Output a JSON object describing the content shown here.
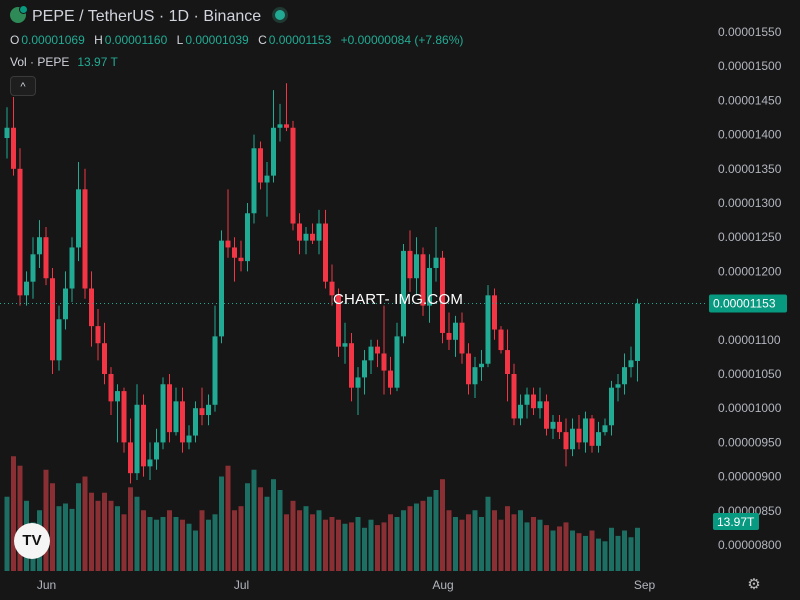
{
  "header": {
    "title": "PEPE / TetherUS · 1D · Binance",
    "ohlc": {
      "o_label": "O",
      "o": "0.00001069",
      "h_label": "H",
      "h": "0.00001160",
      "l_label": "L",
      "l": "0.00001039",
      "c_label": "C",
      "c": "0.00001153",
      "change": "+0.00000084 (+7.86%)"
    },
    "volume_label": "Vol · PEPE",
    "volume_value": "13.97 T"
  },
  "watermark": "CHART- IMG.COM",
  "logo_text": "TV",
  "icons": {
    "symbol_logo": "pepe-coin-icon",
    "status": "market-status-dot-icon",
    "collapse": "chevron-up-icon",
    "settings": "gear-icon"
  },
  "colors": {
    "up": "#22ab94",
    "down": "#f23645",
    "up_volume": "#1d6f63",
    "down_volume": "#8a2f33",
    "background": "#161616",
    "price_tag": "#089981"
  },
  "chart_data": {
    "type": "candlestick",
    "symbol": "PEPE / TetherUS",
    "interval": "1D",
    "exchange": "Binance",
    "y_axis_ticks": [
      "0.00001550",
      "0.00001500",
      "0.00001450",
      "0.00001400",
      "0.00001350",
      "0.00001300",
      "0.00001250",
      "0.00001200",
      "0.00001150",
      "0.00001100",
      "0.00001050",
      "0.00001000",
      "0.00000950",
      "0.00000900",
      "0.00000850",
      "0.00000800"
    ],
    "ylim": [
      7.7e-06,
      1.57e-05
    ],
    "x_axis_labels": [
      "Jun",
      "Jul",
      "Aug",
      "Sep"
    ],
    "x_label_indices": [
      5,
      35,
      66,
      97
    ],
    "last_price": "0.00001153",
    "volume_tag": "13.97T",
    "grid": false,
    "candles": [
      [
        1.395e-05,
        1.44e-05,
        1.365e-05,
        1.41e-05,
        0.55
      ],
      [
        1.41e-05,
        1.455e-05,
        1.34e-05,
        1.35e-05,
        0.85
      ],
      [
        1.35e-05,
        1.38e-05,
        1.15e-05,
        1.165e-05,
        0.78
      ],
      [
        1.165e-05,
        1.2e-05,
        1.15e-05,
        1.185e-05,
        0.52
      ],
      [
        1.185e-05,
        1.25e-05,
        1.16e-05,
        1.225e-05,
        0.36
      ],
      [
        1.225e-05,
        1.275e-05,
        1.205e-05,
        1.25e-05,
        0.45
      ],
      [
        1.25e-05,
        1.265e-05,
        1.18e-05,
        1.19e-05,
        0.75
      ],
      [
        1.19e-05,
        1.205e-05,
        1.05e-05,
        1.07e-05,
        0.65
      ],
      [
        1.07e-05,
        1.15e-05,
        1.055e-05,
        1.13e-05,
        0.48
      ],
      [
        1.13e-05,
        1.2e-05,
        1.115e-05,
        1.175e-05,
        0.5
      ],
      [
        1.175e-05,
        1.25e-05,
        1.155e-05,
        1.235e-05,
        0.46
      ],
      [
        1.235e-05,
        1.36e-05,
        1.215e-05,
        1.32e-05,
        0.65
      ],
      [
        1.32e-05,
        1.35e-05,
        1.16e-05,
        1.175e-05,
        0.7
      ],
      [
        1.175e-05,
        1.2e-05,
        1.09e-05,
        1.12e-05,
        0.58
      ],
      [
        1.12e-05,
        1.145e-05,
        1.07e-05,
        1.095e-05,
        0.52
      ],
      [
        1.095e-05,
        1.125e-05,
        1.035e-05,
        1.05e-05,
        0.58
      ],
      [
        1.05e-05,
        1.06e-05,
        9.9e-06,
        1.01e-05,
        0.52
      ],
      [
        1.01e-05,
        1.035e-05,
        9.5e-06,
        1.025e-05,
        0.48
      ],
      [
        1.025e-05,
        1.03e-05,
        9.35e-06,
        9.5e-06,
        0.42
      ],
      [
        9.5e-06,
        9.85e-06,
        8.9e-06,
        9.05e-06,
        0.62
      ],
      [
        9.05e-06,
        1.035e-05,
        8.95e-06,
        1.005e-05,
        0.55
      ],
      [
        1.005e-05,
        1.02e-05,
        9e-06,
        9.15e-06,
        0.45
      ],
      [
        9.15e-06,
        9.5e-06,
        8.95e-06,
        9.25e-06,
        0.4
      ],
      [
        9.25e-06,
        9.7e-06,
        9.1e-06,
        9.5e-06,
        0.38
      ],
      [
        9.5e-06,
        1.045e-05,
        9.4e-06,
        1.035e-05,
        0.4
      ],
      [
        1.035e-05,
        1.05e-05,
        9.5e-06,
        9.65e-06,
        0.45
      ],
      [
        9.65e-06,
        1.03e-05,
        9.6e-06,
        1.01e-05,
        0.4
      ],
      [
        1.01e-05,
        1.03e-05,
        9.35e-06,
        9.5e-06,
        0.38
      ],
      [
        9.5e-06,
        9.75e-06,
        9.4e-06,
        9.6e-06,
        0.35
      ],
      [
        9.6e-06,
        1.01e-05,
        9.5e-06,
        1e-05,
        0.3
      ],
      [
        1e-05,
        1.03e-05,
        9.75e-06,
        9.9e-06,
        0.45
      ],
      [
        9.9e-06,
        1.02e-05,
        9.75e-06,
        1.005e-05,
        0.38
      ],
      [
        1.005e-05,
        1.15e-05,
        9.95e-06,
        1.105e-05,
        0.42
      ],
      [
        1.105e-05,
        1.26e-05,
        1.095e-05,
        1.245e-05,
        0.7
      ],
      [
        1.245e-05,
        1.32e-05,
        1.22e-05,
        1.235e-05,
        0.78
      ],
      [
        1.235e-05,
        1.25e-05,
        1.185e-05,
        1.22e-05,
        0.45
      ],
      [
        1.22e-05,
        1.245e-05,
        1.2e-05,
        1.215e-05,
        0.48
      ],
      [
        1.215e-05,
        1.3e-05,
        1.2e-05,
        1.285e-05,
        0.65
      ],
      [
        1.285e-05,
        1.4e-05,
        1.27e-05,
        1.38e-05,
        0.75
      ],
      [
        1.38e-05,
        1.39e-05,
        1.32e-05,
        1.33e-05,
        0.62
      ],
      [
        1.33e-05,
        1.36e-05,
        1.28e-05,
        1.34e-05,
        0.55
      ],
      [
        1.34e-05,
        1.465e-05,
        1.33e-05,
        1.41e-05,
        0.68
      ],
      [
        1.41e-05,
        1.445e-05,
        1.39e-05,
        1.415e-05,
        0.6
      ],
      [
        1.415e-05,
        1.475e-05,
        1.405e-05,
        1.41e-05,
        0.42
      ],
      [
        1.41e-05,
        1.42e-05,
        1.26e-05,
        1.27e-05,
        0.52
      ],
      [
        1.27e-05,
        1.285e-05,
        1.225e-05,
        1.245e-05,
        0.45
      ],
      [
        1.245e-05,
        1.265e-05,
        1.225e-05,
        1.255e-05,
        0.48
      ],
      [
        1.255e-05,
        1.27e-05,
        1.24e-05,
        1.245e-05,
        0.42
      ],
      [
        1.245e-05,
        1.29e-05,
        1.225e-05,
        1.27e-05,
        0.45
      ],
      [
        1.27e-05,
        1.29e-05,
        1.175e-05,
        1.185e-05,
        0.38
      ],
      [
        1.185e-05,
        1.21e-05,
        1.15e-05,
        1.165e-05,
        0.4
      ],
      [
        1.165e-05,
        1.175e-05,
        1.075e-05,
        1.09e-05,
        0.38
      ],
      [
        1.09e-05,
        1.125e-05,
        1.065e-05,
        1.095e-05,
        0.35
      ],
      [
        1.095e-05,
        1.11e-05,
        1.01e-05,
        1.03e-05,
        0.36
      ],
      [
        1.03e-05,
        1.06e-05,
        9.9e-06,
        1.045e-05,
        0.4
      ],
      [
        1.045e-05,
        1.085e-05,
        1.02e-05,
        1.07e-05,
        0.32
      ],
      [
        1.07e-05,
        1.1e-05,
        1.05e-05,
        1.09e-05,
        0.38
      ],
      [
        1.09e-05,
        1.1e-05,
        1.06e-05,
        1.08e-05,
        0.34
      ],
      [
        1.08e-05,
        1.15e-05,
        1.02e-05,
        1.055e-05,
        0.36
      ],
      [
        1.055e-05,
        1.075e-05,
        1.02e-05,
        1.03e-05,
        0.42
      ],
      [
        1.03e-05,
        1.125e-05,
        1.025e-05,
        1.105e-05,
        0.4
      ],
      [
        1.105e-05,
        1.24e-05,
        1.095e-05,
        1.23e-05,
        0.45
      ],
      [
        1.23e-05,
        1.26e-05,
        1.17e-05,
        1.19e-05,
        0.48
      ],
      [
        1.19e-05,
        1.25e-05,
        1.165e-05,
        1.225e-05,
        0.5
      ],
      [
        1.225e-05,
        1.235e-05,
        1.135e-05,
        1.15e-05,
        0.52
      ],
      [
        1.15e-05,
        1.225e-05,
        1.125e-05,
        1.205e-05,
        0.55
      ],
      [
        1.205e-05,
        1.265e-05,
        1.185e-05,
        1.22e-05,
        0.6
      ],
      [
        1.22e-05,
        1.23e-05,
        1.095e-05,
        1.11e-05,
        0.68
      ],
      [
        1.11e-05,
        1.14e-05,
        1.085e-05,
        1.1e-05,
        0.45
      ],
      [
        1.1e-05,
        1.135e-05,
        1.075e-05,
        1.125e-05,
        0.4
      ],
      [
        1.125e-05,
        1.14e-05,
        1.065e-05,
        1.08e-05,
        0.38
      ],
      [
        1.08e-05,
        1.095e-05,
        1.02e-05,
        1.035e-05,
        0.42
      ],
      [
        1.035e-05,
        1.075e-05,
        1.015e-05,
        1.06e-05,
        0.45
      ],
      [
        1.06e-05,
        1.085e-05,
        1.04e-05,
        1.065e-05,
        0.4
      ],
      [
        1.065e-05,
        1.18e-05,
        1.06e-05,
        1.165e-05,
        0.55
      ],
      [
        1.165e-05,
        1.175e-05,
        1.1e-05,
        1.115e-05,
        0.45
      ],
      [
        1.115e-05,
        1.12e-05,
        1.08e-05,
        1.085e-05,
        0.38
      ],
      [
        1.085e-05,
        1.115e-05,
        1.01e-05,
        1.05e-05,
        0.48
      ],
      [
        1.05e-05,
        1.065e-05,
        9.75e-06,
        9.85e-06,
        0.42
      ],
      [
        9.85e-06,
        1.02e-05,
        9.75e-06,
        1.005e-05,
        0.45
      ],
      [
        1.005e-05,
        1.03e-05,
        9.85e-06,
        1.02e-05,
        0.36
      ],
      [
        1.02e-05,
        1.03e-05,
        9.9e-06,
        1e-05,
        0.4
      ],
      [
        1e-05,
        1.03e-05,
        9.85e-06,
        1.01e-05,
        0.38
      ],
      [
        1.01e-05,
        1.02e-05,
        9.6e-06,
        9.7e-06,
        0.34
      ],
      [
        9.7e-06,
        9.9e-06,
        9.55e-06,
        9.8e-06,
        0.3
      ],
      [
        9.8e-06,
        9.9e-06,
        9.55e-06,
        9.65e-06,
        0.33
      ],
      [
        9.65e-06,
        9.85e-06,
        9.15e-06,
        9.4e-06,
        0.36
      ],
      [
        9.4e-06,
        9.85e-06,
        9.3e-06,
        9.7e-06,
        0.3
      ],
      [
        9.7e-06,
        9.9e-06,
        9.4e-06,
        9.5e-06,
        0.28
      ],
      [
        9.5e-06,
        9.95e-06,
        9.35e-06,
        9.85e-06,
        0.26
      ],
      [
        9.85e-06,
        9.9e-06,
        9.35e-06,
        9.45e-06,
        0.3
      ],
      [
        9.45e-06,
        9.8e-06,
        9.35e-06,
        9.65e-06,
        0.24
      ],
      [
        9.65e-06,
        9.85e-06,
        9.6e-06,
        9.75e-06,
        0.22
      ],
      [
        9.75e-06,
        1.04e-05,
        9.6e-06,
        1.03e-05,
        0.32
      ],
      [
        1.03e-05,
        1.05e-05,
        1.01e-05,
        1.035e-05,
        0.26
      ],
      [
        1.035e-05,
        1.08e-05,
        1.02e-05,
        1.06e-05,
        0.3
      ],
      [
        1.06e-05,
        1.09e-05,
        1.045e-05,
        1.07e-05,
        0.25
      ],
      [
        1.069e-05,
        1.16e-05,
        1.039e-05,
        1.153e-05,
        0.32
      ]
    ]
  }
}
